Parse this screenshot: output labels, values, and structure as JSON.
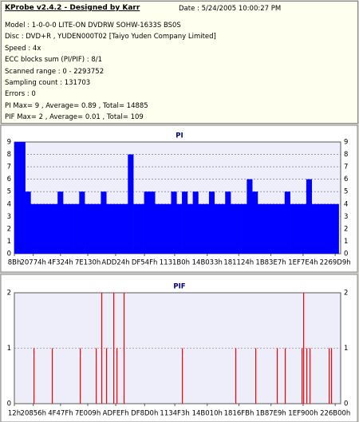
{
  "header": {
    "title": "KProbe v2.4.2 - Designed by Karr",
    "date": "Date : 5/24/2005 10:00:27 PM",
    "lines": [
      "Model : 1-0-0-0 LITE-ON DVDRW SOHW-1633S BS0S",
      "Disc : DVD+R , YUDEN000T02 [Taiyo Yuden Company Limited]",
      "Speed : 4x",
      "ECC blocks sum (PI/PIF) : 8/1",
      "Scanned range : 0 - 2293752",
      "Sampling count : 131703",
      "Errors : 0",
      "PI Max= 9 , Average= 0.89 , Total= 14885",
      "PIF Max= 2 , Average= 0.01 , Total= 109"
    ]
  },
  "chart_data": [
    {
      "type": "bar",
      "title": "PI",
      "color": "#0000ff",
      "grid": true,
      "xlim": [
        0,
        2293752
      ],
      "xticks": [
        {
          "value": 139,
          "label": "8Bh"
        },
        {
          "value": 132980,
          "label": "20774h"
        },
        {
          "value": 324388,
          "label": "4F324h"
        },
        {
          "value": 516400,
          "label": "7E130h"
        },
        {
          "value": 711972,
          "label": "ADD24h"
        },
        {
          "value": 914767,
          "label": "DF54Fh"
        },
        {
          "value": 1126832,
          "label": "1131B0h"
        },
        {
          "value": 1355827,
          "label": "14B033h"
        },
        {
          "value": 1577252,
          "label": "181124h"
        },
        {
          "value": 1803239,
          "label": "1B83E7h"
        },
        {
          "value": 2029540,
          "label": "1EF7E4h"
        },
        {
          "value": 2255321,
          "label": "2269D9h"
        }
      ],
      "ylim": [
        0,
        9
      ],
      "yticks": [
        0,
        1,
        2,
        3,
        4,
        5,
        6,
        7,
        8,
        9
      ],
      "x": [
        0,
        38000,
        76000,
        114000,
        152000,
        190000,
        228000,
        266000,
        304000,
        342000,
        380000,
        418000,
        456000,
        494000,
        532000,
        570000,
        608000,
        646000,
        684000,
        722000,
        760000,
        798000,
        836000,
        874000,
        912000,
        950000,
        988000,
        1026000,
        1064000,
        1102000,
        1140000,
        1178000,
        1216000,
        1254000,
        1292000,
        1330000,
        1368000,
        1406000,
        1444000,
        1482000,
        1520000,
        1558000,
        1596000,
        1634000,
        1672000,
        1710000,
        1748000,
        1786000,
        1824000,
        1862000,
        1900000,
        1938000,
        1976000,
        2014000,
        2052000,
        2090000,
        2128000,
        2166000,
        2204000,
        2242000
      ],
      "values": [
        9,
        9,
        5,
        4,
        4,
        4,
        4,
        4,
        5,
        4,
        4,
        4,
        5,
        4,
        4,
        4,
        5,
        4,
        4,
        4,
        4,
        8,
        4,
        4,
        5,
        5,
        4,
        4,
        4,
        5,
        4,
        5,
        4,
        5,
        4,
        4,
        5,
        4,
        4,
        5,
        4,
        4,
        4,
        6,
        5,
        4,
        4,
        4,
        4,
        4,
        5,
        4,
        4,
        4,
        6,
        4,
        4,
        4,
        4,
        4
      ]
    },
    {
      "type": "bar",
      "title": "PIF",
      "color": "#ff0000",
      "grid": true,
      "xlim": [
        0,
        2293752
      ],
      "xticks": [
        {
          "value": 18,
          "label": "12h"
        },
        {
          "value": 133206,
          "label": "20856h"
        },
        {
          "value": 324735,
          "label": "4F47Fh"
        },
        {
          "value": 516105,
          "label": "7E009h"
        },
        {
          "value": 712687,
          "label": "ADFEFh"
        },
        {
          "value": 915664,
          "label": "DF8D0h"
        },
        {
          "value": 1127667,
          "label": "1134F3h"
        },
        {
          "value": 1355792,
          "label": "14B010h"
        },
        {
          "value": 1578747,
          "label": "1816FBh"
        },
        {
          "value": 1804265,
          "label": "1B87E9h"
        },
        {
          "value": 2029824,
          "label": "1EF900h"
        },
        {
          "value": 2255616,
          "label": "226B00h"
        }
      ],
      "ylim": [
        0,
        2
      ],
      "yticks": [
        0,
        1,
        2
      ],
      "x": [
        134600,
        263600,
        459900,
        572000,
        611300,
        645000,
        695400,
        717800,
        768300,
        1177700,
        1553500,
        1693700,
        1845100,
        1901200,
        2019000,
        2030200,
        2052600,
        2075000,
        2209600,
        2226400
      ],
      "values": [
        1,
        1,
        1,
        1,
        2,
        1,
        2,
        1,
        2,
        1,
        1,
        1,
        1,
        1,
        1,
        2,
        1,
        1,
        1,
        1
      ]
    }
  ]
}
